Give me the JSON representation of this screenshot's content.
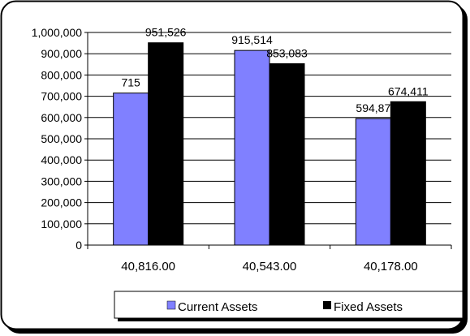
{
  "chart_data": {
    "type": "bar",
    "categories": [
      "40,816.00",
      "40,543.00",
      "40,178.00"
    ],
    "series": [
      {
        "name": "Current Assets",
        "values": [
          715000,
          915514,
          594870
        ],
        "labels": [
          "715",
          "915,514",
          "594,87"
        ],
        "color": "#8080ff"
      },
      {
        "name": "Fixed Assets",
        "values": [
          951526,
          853083,
          674411
        ],
        "labels": [
          "951,526",
          "853,083",
          "674,411"
        ],
        "color": "#000000"
      }
    ],
    "y_ticks": [
      "0",
      "100,000",
      "200,000",
      "300,000",
      "400,000",
      "500,000",
      "600,000",
      "700,000",
      "800,000",
      "900,000",
      "1,000,000"
    ],
    "ylim": [
      0,
      1000000
    ],
    "grid": true,
    "legend_position": "bottom-right"
  }
}
